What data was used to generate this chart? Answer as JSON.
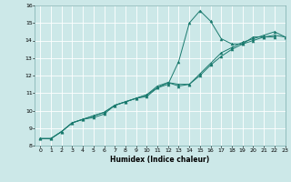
{
  "xlabel": "Humidex (Indice chaleur)",
  "xlim": [
    -0.5,
    23
  ],
  "ylim": [
    8,
    16
  ],
  "xticks": [
    0,
    1,
    2,
    3,
    4,
    5,
    6,
    7,
    8,
    9,
    10,
    11,
    12,
    13,
    14,
    15,
    16,
    17,
    18,
    19,
    20,
    21,
    22,
    23
  ],
  "yticks": [
    8,
    9,
    10,
    11,
    12,
    13,
    14,
    15,
    16
  ],
  "bg_color": "#cce8e8",
  "grid_color": "#b8d8d8",
  "line_color": "#1a7a6e",
  "series": [
    {
      "x": [
        0,
        1,
        2,
        3,
        4,
        5,
        6,
        7,
        8,
        9,
        10,
        11,
        12,
        13,
        14,
        15,
        16,
        17,
        18,
        19,
        20,
        21,
        22
      ],
      "y": [
        8.4,
        8.4,
        8.8,
        9.3,
        9.5,
        9.6,
        9.8,
        10.3,
        10.5,
        10.7,
        10.8,
        11.3,
        11.5,
        12.8,
        15.0,
        15.7,
        15.1,
        14.1,
        13.8,
        13.8,
        14.2,
        14.2,
        14.2
      ]
    },
    {
      "x": [
        0,
        1,
        2,
        3,
        4,
        5,
        6,
        7,
        8,
        9,
        10,
        11,
        12,
        13,
        14,
        15,
        16,
        17,
        18,
        19,
        20,
        21,
        22,
        23
      ],
      "y": [
        8.4,
        8.4,
        8.8,
        9.3,
        9.5,
        9.7,
        9.9,
        10.3,
        10.5,
        10.7,
        10.9,
        11.4,
        11.6,
        11.4,
        11.5,
        12.0,
        12.6,
        13.1,
        13.5,
        13.8,
        14.0,
        14.2,
        14.3,
        14.2
      ]
    },
    {
      "x": [
        0,
        1,
        2,
        3,
        4,
        5,
        6,
        7,
        8,
        9,
        10,
        11,
        12,
        13,
        14,
        15,
        16,
        17,
        18,
        19,
        20,
        21,
        22,
        23
      ],
      "y": [
        8.4,
        8.4,
        8.8,
        9.3,
        9.5,
        9.7,
        9.9,
        10.3,
        10.5,
        10.7,
        10.9,
        11.3,
        11.6,
        11.5,
        11.5,
        12.1,
        12.7,
        13.3,
        13.6,
        13.9,
        14.1,
        14.3,
        14.5,
        14.2
      ]
    }
  ]
}
